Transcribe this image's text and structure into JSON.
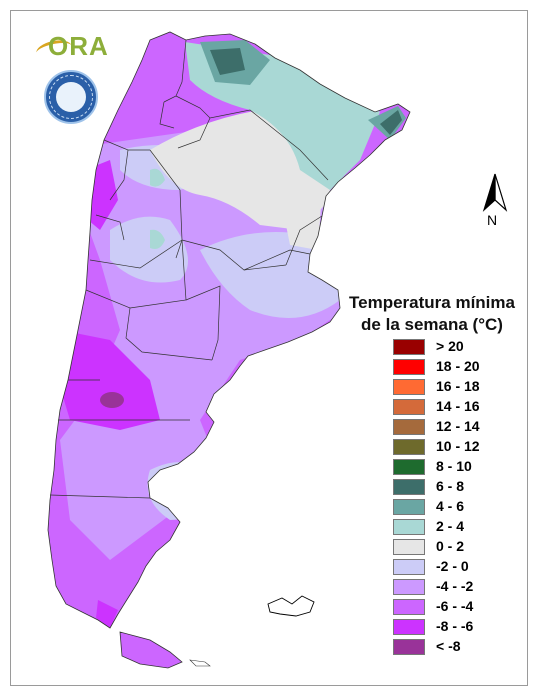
{
  "logos": {
    "ora_text": "ORA",
    "seal_lettering": "SERVICIO METEOROLÓGICO NACIONAL ARGENTINA"
  },
  "north_arrow": {
    "label": "N"
  },
  "legend": {
    "title_line1": "Temperatura mínima",
    "title_line2": "de la semana (°C)",
    "items": [
      {
        "label": "> 20",
        "color": "#990000"
      },
      {
        "label": "18 - 20",
        "color": "#ff0000"
      },
      {
        "label": "16 - 18",
        "color": "#ff6a33"
      },
      {
        "label": "14 - 16",
        "color": "#d46a3a"
      },
      {
        "label": "12 - 14",
        "color": "#a56a3c"
      },
      {
        "label": "10 - 12",
        "color": "#6e6a2c"
      },
      {
        "label": "8 - 10",
        "color": "#1e6b2e"
      },
      {
        "label": "6 - 8",
        "color": "#3d6e6a"
      },
      {
        "label": "4 - 6",
        "color": "#6aa6a3"
      },
      {
        "label": "2 - 4",
        "color": "#a9d8d5"
      },
      {
        "label": "0 - 2",
        "color": "#e6e6e6"
      },
      {
        "label": "-2 - 0",
        "color": "#ccccf7"
      },
      {
        "label": "-4 - -2",
        "color": "#cc99ff"
      },
      {
        "label": "-6 - -4",
        "color": "#cc66ff"
      },
      {
        "label": "-8 - -6",
        "color": "#cc33ff"
      },
      {
        "label": "< -8",
        "color": "#993399"
      }
    ]
  },
  "map_colors": {
    "border": "#333333",
    "frame": "#9a9a9a"
  }
}
